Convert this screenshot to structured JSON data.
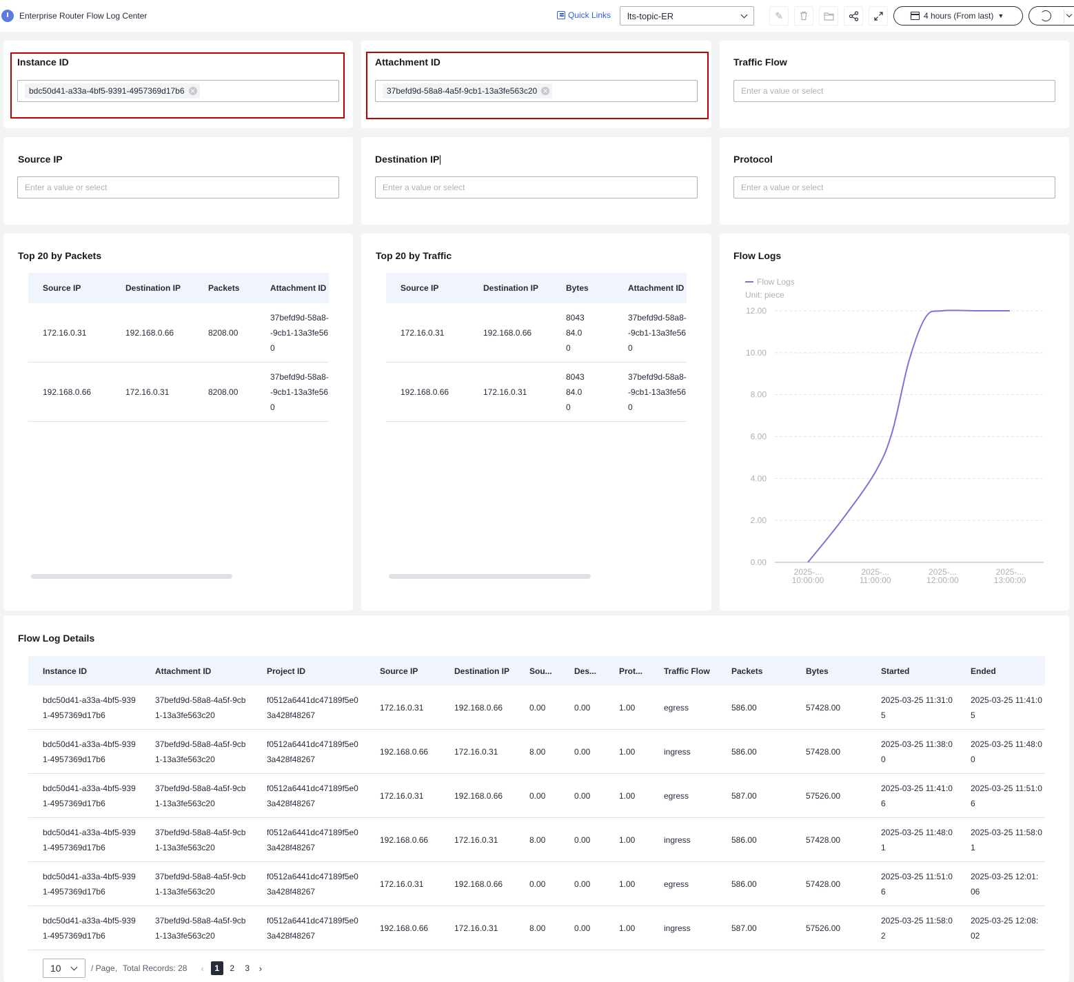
{
  "app": {
    "title": "Enterprise Router Flow Log Center"
  },
  "toolbar": {
    "quick_links": "Quick Links",
    "topic": "lts-topic-ER",
    "time_range": "4 hours (From last)"
  },
  "filters": {
    "instance_id": {
      "label": "Instance ID",
      "value": "bdc50d41-a33a-4bf5-9391-4957369d17b6"
    },
    "attachment_id": {
      "label": "Attachment ID",
      "value": "37befd9d-58a8-4a5f-9cb1-13a3fe563c20"
    },
    "traffic_flow": {
      "label": "Traffic Flow",
      "placeholder": "Enter a value or select"
    },
    "source_ip": {
      "label": "Source IP",
      "placeholder": "Enter a value or select"
    },
    "destination_ip": {
      "label": "Destination IP",
      "placeholder": "Enter a value or select"
    },
    "protocol": {
      "label": "Protocol",
      "placeholder": "Enter a value or select"
    }
  },
  "top_packets": {
    "title": "Top 20 by Packets",
    "columns": [
      "Source IP",
      "Destination IP",
      "Packets",
      "Attachment ID"
    ],
    "rows": [
      [
        "172.16.0.31",
        "192.168.0.66",
        "8208.00",
        "37befd9d-58a8--9cb1-13a3fe560"
      ],
      [
        "192.168.0.66",
        "172.16.0.31",
        "8208.00",
        "37befd9d-58a8--9cb1-13a3fe560"
      ]
    ]
  },
  "top_traffic": {
    "title": "Top 20 by Traffic",
    "columns": [
      "Source IP",
      "Destination IP",
      "Bytes",
      "Attachment ID"
    ],
    "rows": [
      [
        "172.16.0.31",
        "192.168.0.66",
        "804384.00",
        "37befd9d-58a8--9cb1-13a3fe560"
      ],
      [
        "192.168.0.66",
        "172.16.0.31",
        "804384.00",
        "37befd9d-58a8--9cb1-13a3fe560"
      ]
    ]
  },
  "flow_chart": {
    "title": "Flow Logs",
    "legend": "Flow Logs",
    "unit": "Unit: piece"
  },
  "chart_data": {
    "type": "line",
    "title": "Flow Logs",
    "ylabel": "Unit: piece",
    "ylim": [
      0,
      12
    ],
    "yticks": [
      "0.00",
      "2.00",
      "4.00",
      "6.00",
      "8.00",
      "10.00",
      "12.00"
    ],
    "xticks": [
      [
        "2025-...",
        "10:00:00"
      ],
      [
        "2025-...",
        "11:00:00"
      ],
      [
        "2025-...",
        "12:00:00"
      ],
      [
        "2025-...",
        "13:00:00"
      ]
    ],
    "x_hours": [
      10.0,
      10.5,
      11.0,
      11.25,
      11.5,
      11.75,
      12.0,
      12.5,
      13.0
    ],
    "series": [
      {
        "name": "Flow Logs",
        "values": [
          0,
          2,
          4.3,
          6.2,
          9.6,
          11.7,
          12,
          12,
          12
        ]
      }
    ],
    "grid": true,
    "legend": "top-left",
    "color": "#7d73d6"
  },
  "details": {
    "title": "Flow Log Details",
    "columns": [
      "Instance ID",
      "Attachment ID",
      "Project ID",
      "Source IP",
      "Destination IP",
      "Sou...",
      "Des...",
      "Prot...",
      "Traffic Flow",
      "Packets",
      "Bytes",
      "Started",
      "Ended"
    ],
    "rows": [
      [
        "bdc50d41-a33a-4bf5-9391-4957369d17b6",
        "37befd9d-58a8-4a5f-9cb1-13a3fe563c20",
        "f0512a6441dc47189f5e03a428f48267",
        "172.16.0.31",
        "192.168.0.66",
        "0.00",
        "0.00",
        "1.00",
        "egress",
        "586.00",
        "57428.00",
        "2025-03-25 11:31:05",
        "2025-03-25 11:41:05"
      ],
      [
        "bdc50d41-a33a-4bf5-9391-4957369d17b6",
        "37befd9d-58a8-4a5f-9cb1-13a3fe563c20",
        "f0512a6441dc47189f5e03a428f48267",
        "192.168.0.66",
        "172.16.0.31",
        "8.00",
        "0.00",
        "1.00",
        "ingress",
        "586.00",
        "57428.00",
        "2025-03-25 11:38:00",
        "2025-03-25 11:48:00"
      ],
      [
        "bdc50d41-a33a-4bf5-9391-4957369d17b6",
        "37befd9d-58a8-4a5f-9cb1-13a3fe563c20",
        "f0512a6441dc47189f5e03a428f48267",
        "172.16.0.31",
        "192.168.0.66",
        "0.00",
        "0.00",
        "1.00",
        "egress",
        "587.00",
        "57526.00",
        "2025-03-25 11:41:06",
        "2025-03-25 11:51:06"
      ],
      [
        "bdc50d41-a33a-4bf5-9391-4957369d17b6",
        "37befd9d-58a8-4a5f-9cb1-13a3fe563c20",
        "f0512a6441dc47189f5e03a428f48267",
        "192.168.0.66",
        "172.16.0.31",
        "8.00",
        "0.00",
        "1.00",
        "ingress",
        "586.00",
        "57428.00",
        "2025-03-25 11:48:01",
        "2025-03-25 11:58:01"
      ],
      [
        "bdc50d41-a33a-4bf5-9391-4957369d17b6",
        "37befd9d-58a8-4a5f-9cb1-13a3fe563c20",
        "f0512a6441dc47189f5e03a428f48267",
        "172.16.0.31",
        "192.168.0.66",
        "0.00",
        "0.00",
        "1.00",
        "egress",
        "586.00",
        "57428.00",
        "2025-03-25 11:51:06",
        "2025-03-25 12:01:06"
      ],
      [
        "bdc50d41-a33a-4bf5-9391-4957369d17b6",
        "37befd9d-58a8-4a5f-9cb1-13a3fe563c20",
        "f0512a6441dc47189f5e03a428f48267",
        "192.168.0.66",
        "172.16.0.31",
        "8.00",
        "0.00",
        "1.00",
        "ingress",
        "587.00",
        "57526.00",
        "2025-03-25 11:58:02",
        "2025-03-25 12:08:02"
      ]
    ]
  },
  "pagination": {
    "page_size": "10",
    "per_page": "/ Page,",
    "total": "Total Records: 28",
    "pages": [
      "1",
      "2",
      "3"
    ],
    "current": "1"
  },
  "icons": {
    "edit": "✎",
    "delete": "🗑",
    "folder": "📂",
    "share": "⤴",
    "fullscreen": "⤢"
  }
}
